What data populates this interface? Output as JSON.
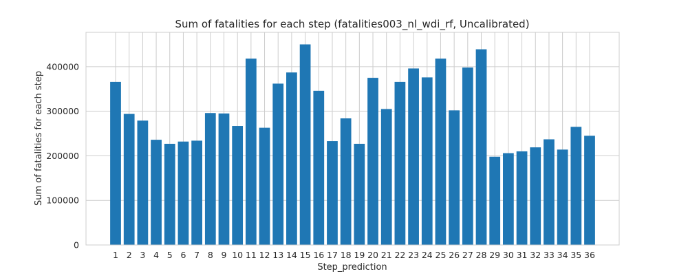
{
  "chart_data": {
    "type": "bar",
    "title": "Sum of fatalities for each step (fatalities003_nl_wdi_rf, Uncalibrated)",
    "xlabel": "Step_prediction",
    "ylabel": "Sum of fatalities for each step",
    "categories": [
      "1",
      "2",
      "3",
      "4",
      "5",
      "6",
      "7",
      "8",
      "9",
      "10",
      "11",
      "12",
      "13",
      "14",
      "15",
      "16",
      "17",
      "18",
      "19",
      "20",
      "21",
      "22",
      "23",
      "24",
      "25",
      "26",
      "27",
      "28",
      "29",
      "30",
      "31",
      "32",
      "33",
      "34",
      "35",
      "36"
    ],
    "values": [
      366000,
      294000,
      279000,
      236000,
      227000,
      232000,
      234000,
      296000,
      295000,
      267000,
      418000,
      263000,
      362000,
      387000,
      450000,
      346000,
      233000,
      284000,
      227000,
      375000,
      305000,
      366000,
      396000,
      376000,
      418000,
      302000,
      398000,
      439000,
      198000,
      206000,
      210000,
      219000,
      237000,
      214000,
      265000,
      245000
    ],
    "ylim": [
      0,
      477000
    ],
    "yticks": [
      0,
      100000,
      200000,
      300000,
      400000
    ],
    "ytick_labels": [
      "0",
      "100000",
      "200000",
      "300000",
      "400000"
    ],
    "grid": true,
    "bar_color": "#1f77b4"
  }
}
